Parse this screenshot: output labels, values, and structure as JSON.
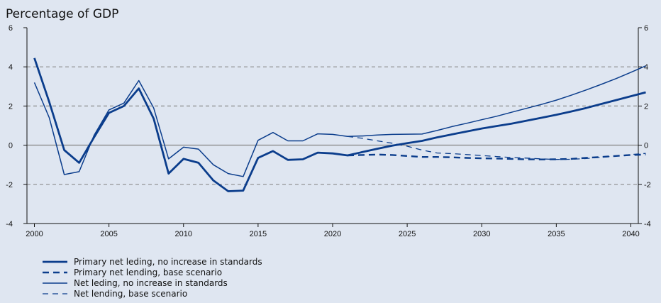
{
  "chart_data": {
    "type": "line",
    "title": "Percentage of GDP",
    "xlabel": "",
    "ylabel": "",
    "xlim": [
      1999.5,
      2040.5
    ],
    "ylim": [
      -4,
      6
    ],
    "x_ticks": [
      2000,
      2005,
      2010,
      2015,
      2020,
      2025,
      2030,
      2035,
      2040
    ],
    "y_ticks": [
      -4,
      -2,
      0,
      2,
      4,
      6
    ],
    "dashed_gridlines": [
      -2,
      2,
      4
    ],
    "zero_line": true,
    "right_axis_mirrored": true,
    "legend_position": "bottom-left",
    "colors": {
      "series": "#0b3d8c",
      "grid": "#8c8c8c",
      "zero": "#8c8c8c",
      "background": "#dfe6f1"
    },
    "series": [
      {
        "name": "Primary net leding, no increase in standards",
        "style": "solid-thick",
        "points": [
          [
            2000,
            4.45
          ],
          [
            2001,
            2.2
          ],
          [
            2002,
            -0.25
          ],
          [
            2003,
            -0.9
          ],
          [
            2004,
            0.4
          ],
          [
            2005,
            1.65
          ],
          [
            2006,
            2.0
          ],
          [
            2007,
            2.9
          ],
          [
            2008,
            1.35
          ],
          [
            2009,
            -1.45
          ],
          [
            2010,
            -0.7
          ],
          [
            2011,
            -0.9
          ],
          [
            2012,
            -1.8
          ],
          [
            2013,
            -2.35
          ],
          [
            2014,
            -2.32
          ],
          [
            2015,
            -0.65
          ],
          [
            2016,
            -0.3
          ],
          [
            2017,
            -0.75
          ],
          [
            2018,
            -0.72
          ],
          [
            2019,
            -0.38
          ],
          [
            2020,
            -0.42
          ],
          [
            2021,
            -0.52
          ],
          [
            2022,
            -0.35
          ],
          [
            2023,
            -0.18
          ],
          [
            2024,
            -0.02
          ],
          [
            2025,
            0.1
          ],
          [
            2026,
            0.22
          ],
          [
            2027,
            0.4
          ],
          [
            2028,
            0.55
          ],
          [
            2029,
            0.7
          ],
          [
            2030,
            0.85
          ],
          [
            2031,
            0.98
          ],
          [
            2032,
            1.1
          ],
          [
            2033,
            1.25
          ],
          [
            2034,
            1.4
          ],
          [
            2035,
            1.55
          ],
          [
            2036,
            1.72
          ],
          [
            2037,
            1.9
          ],
          [
            2038,
            2.1
          ],
          [
            2039,
            2.3
          ],
          [
            2040,
            2.5
          ],
          [
            2041,
            2.7
          ]
        ]
      },
      {
        "name": "Primary net lending, base scenario",
        "style": "dashed-thick",
        "points": [
          [
            2021,
            -0.52
          ],
          [
            2022,
            -0.5
          ],
          [
            2023,
            -0.48
          ],
          [
            2024,
            -0.5
          ],
          [
            2025,
            -0.55
          ],
          [
            2026,
            -0.6
          ],
          [
            2027,
            -0.6
          ],
          [
            2028,
            -0.62
          ],
          [
            2029,
            -0.65
          ],
          [
            2030,
            -0.67
          ],
          [
            2031,
            -0.68
          ],
          [
            2032,
            -0.7
          ],
          [
            2033,
            -0.72
          ],
          [
            2034,
            -0.73
          ],
          [
            2035,
            -0.72
          ],
          [
            2036,
            -0.7
          ],
          [
            2037,
            -0.65
          ],
          [
            2038,
            -0.6
          ],
          [
            2039,
            -0.55
          ],
          [
            2040,
            -0.5
          ],
          [
            2041,
            -0.48
          ]
        ]
      },
      {
        "name": "Net leding, no increase in standards",
        "style": "solid-thin",
        "points": [
          [
            2000,
            3.2
          ],
          [
            2001,
            1.4
          ],
          [
            2002,
            -1.5
          ],
          [
            2003,
            -1.35
          ],
          [
            2004,
            0.5
          ],
          [
            2005,
            1.8
          ],
          [
            2006,
            2.15
          ],
          [
            2007,
            3.3
          ],
          [
            2008,
            1.9
          ],
          [
            2009,
            -0.7
          ],
          [
            2010,
            -0.1
          ],
          [
            2011,
            -0.2
          ],
          [
            2012,
            -1.0
          ],
          [
            2013,
            -1.45
          ],
          [
            2014,
            -1.6
          ],
          [
            2015,
            0.25
          ],
          [
            2016,
            0.65
          ],
          [
            2017,
            0.22
          ],
          [
            2018,
            0.22
          ],
          [
            2019,
            0.58
          ],
          [
            2020,
            0.55
          ],
          [
            2021,
            0.45
          ],
          [
            2022,
            0.47
          ],
          [
            2023,
            0.52
          ],
          [
            2024,
            0.55
          ],
          [
            2025,
            0.56
          ],
          [
            2026,
            0.57
          ],
          [
            2027,
            0.75
          ],
          [
            2028,
            0.95
          ],
          [
            2029,
            1.12
          ],
          [
            2030,
            1.3
          ],
          [
            2031,
            1.48
          ],
          [
            2032,
            1.68
          ],
          [
            2033,
            1.88
          ],
          [
            2034,
            2.08
          ],
          [
            2035,
            2.3
          ],
          [
            2036,
            2.55
          ],
          [
            2037,
            2.82
          ],
          [
            2038,
            3.1
          ],
          [
            2039,
            3.4
          ],
          [
            2040,
            3.72
          ],
          [
            2041,
            4.05
          ]
        ]
      },
      {
        "name": "Net lending, base scenario",
        "style": "dashed-thin",
        "points": [
          [
            2021,
            0.45
          ],
          [
            2022,
            0.35
          ],
          [
            2023,
            0.22
          ],
          [
            2024,
            0.1
          ],
          [
            2025,
            -0.05
          ],
          [
            2026,
            -0.25
          ],
          [
            2027,
            -0.4
          ],
          [
            2028,
            -0.43
          ],
          [
            2029,
            -0.48
          ],
          [
            2030,
            -0.53
          ],
          [
            2031,
            -0.58
          ],
          [
            2032,
            -0.63
          ],
          [
            2033,
            -0.66
          ],
          [
            2034,
            -0.7
          ],
          [
            2035,
            -0.73
          ],
          [
            2036,
            -0.72
          ],
          [
            2037,
            -0.68
          ],
          [
            2038,
            -0.62
          ],
          [
            2039,
            -0.55
          ],
          [
            2040,
            -0.48
          ],
          [
            2041,
            -0.42
          ]
        ]
      }
    ]
  }
}
